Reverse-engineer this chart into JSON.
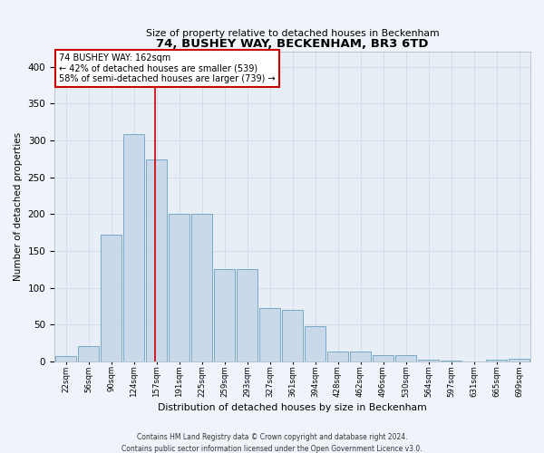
{
  "title": "74, BUSHEY WAY, BECKENHAM, BR3 6TD",
  "subtitle": "Size of property relative to detached houses in Beckenham",
  "xlabel": "Distribution of detached houses by size in Beckenham",
  "ylabel": "Number of detached properties",
  "categories": [
    "22sqm",
    "56sqm",
    "90sqm",
    "124sqm",
    "157sqm",
    "191sqm",
    "225sqm",
    "259sqm",
    "293sqm",
    "327sqm",
    "361sqm",
    "394sqm",
    "428sqm",
    "462sqm",
    "496sqm",
    "530sqm",
    "564sqm",
    "597sqm",
    "631sqm",
    "665sqm",
    "699sqm"
  ],
  "values": [
    7,
    21,
    172,
    308,
    274,
    200,
    200,
    125,
    125,
    73,
    70,
    48,
    14,
    13,
    9,
    9,
    3,
    1,
    0,
    2,
    4
  ],
  "bar_color": "#c9d9ea",
  "bar_edge_color": "#6a9fc0",
  "annotation_label": "74 BUSHEY WAY: 162sqm",
  "annotation_line1": "← 42% of detached houses are smaller (539)",
  "annotation_line2": "58% of semi-detached houses are larger (739) →",
  "annotation_box_facecolor": "#ffffff",
  "annotation_box_edgecolor": "#cc0000",
  "vline_color": "#cc0000",
  "vline_x": 3.93,
  "grid_color": "#d0dcea",
  "background_color": "#e8eef6",
  "fig_facecolor": "#f0f4fa",
  "footer1": "Contains HM Land Registry data © Crown copyright and database right 2024.",
  "footer2": "Contains public sector information licensed under the Open Government Licence v3.0.",
  "ylim": [
    0,
    420
  ],
  "yticks": [
    0,
    50,
    100,
    150,
    200,
    250,
    300,
    350,
    400
  ]
}
